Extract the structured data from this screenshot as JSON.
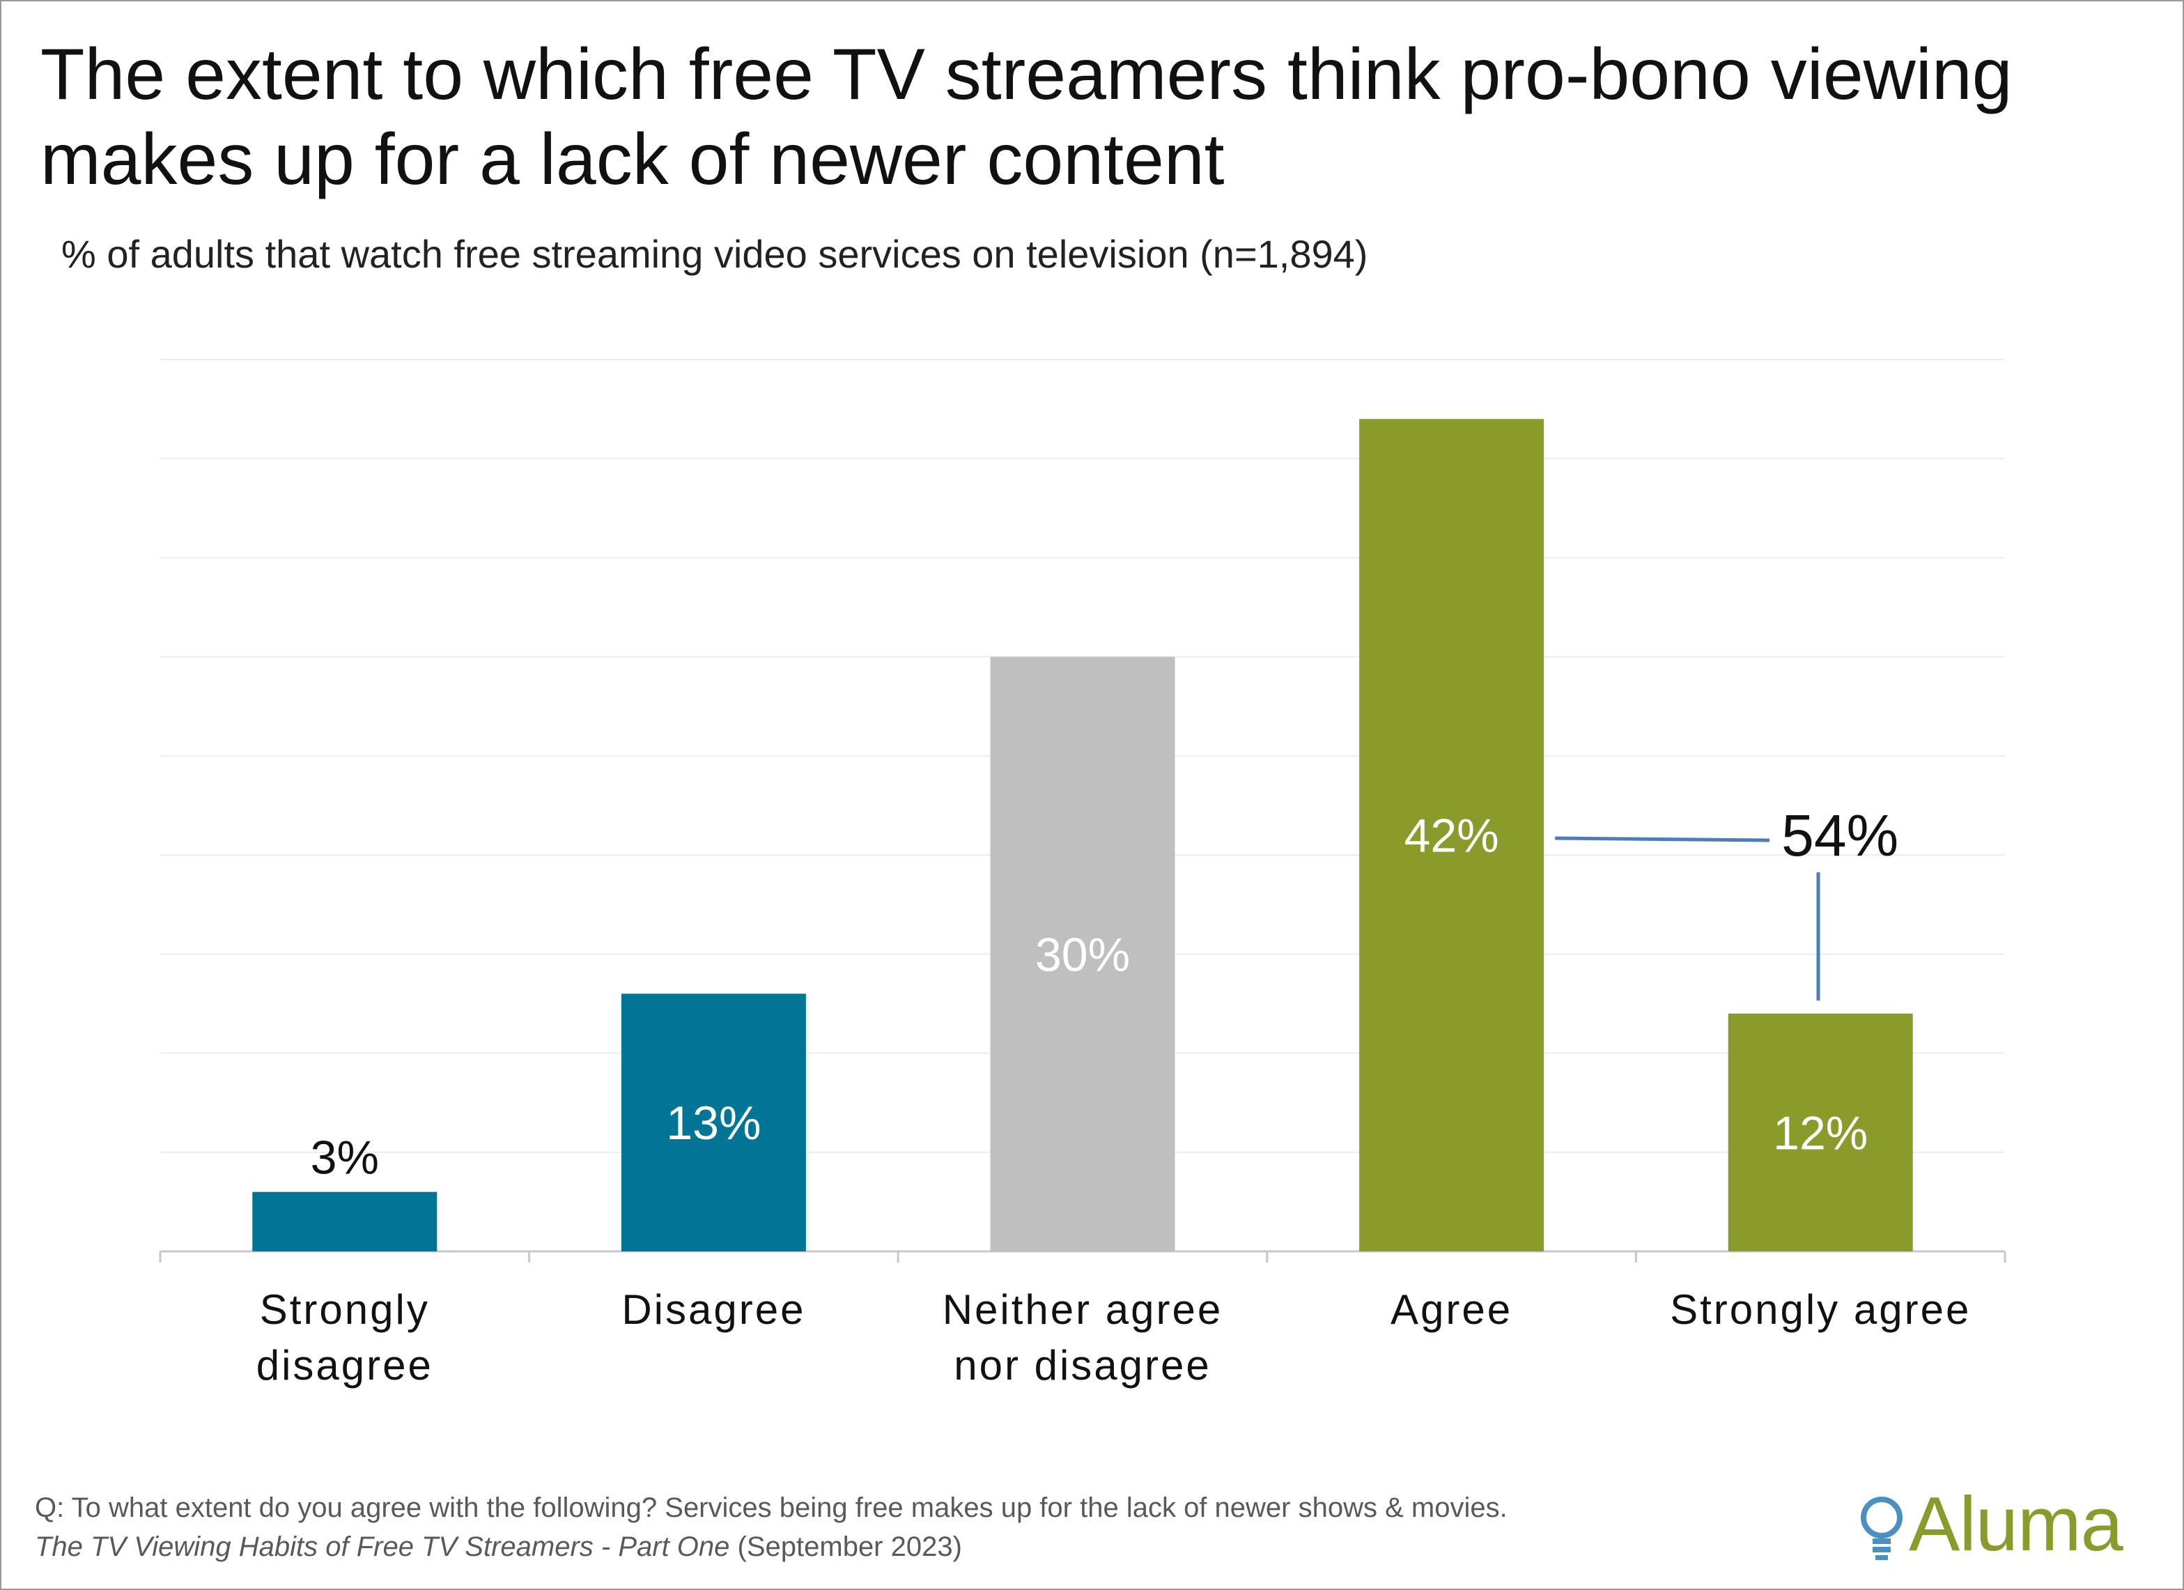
{
  "title": "The extent to which free TV streamers think pro-bono viewing makes up for a lack of newer content",
  "subtitle": "% of adults that watch free streaming video services on television (n=1,894)",
  "chart_data": {
    "type": "bar",
    "categories": [
      [
        "Strongly",
        "disagree"
      ],
      [
        "Disagree"
      ],
      [
        "Neither agree",
        "nor disagree"
      ],
      [
        "Agree"
      ],
      [
        "Strongly agree"
      ]
    ],
    "values": [
      3,
      13,
      30,
      42,
      12
    ],
    "data_labels": [
      "3%",
      "13%",
      "30%",
      "42%",
      "12%"
    ],
    "colors": [
      "#007596",
      "#007596",
      "#BFBFBF",
      "#8A9A2B",
      "#8A9A2B"
    ],
    "ylim": [
      0,
      45
    ],
    "gridlines": true,
    "annotation": {
      "label": "54%",
      "connects": [
        "Agree",
        "Strongly agree"
      ],
      "line_color": "#4A7EBB"
    }
  },
  "footer": {
    "question": "Q: To what extent do you agree with the following? Services being free makes up for the lack of newer shows & movies.",
    "source_title": "The TV Viewing Habits of Free TV Streamers - Part One",
    "source_date": " (September 2023)"
  },
  "logo": {
    "text": "Aluma",
    "icon": "lightbulb-icon",
    "color": "#8A9A2B",
    "icon_color": "#4A90C0"
  }
}
